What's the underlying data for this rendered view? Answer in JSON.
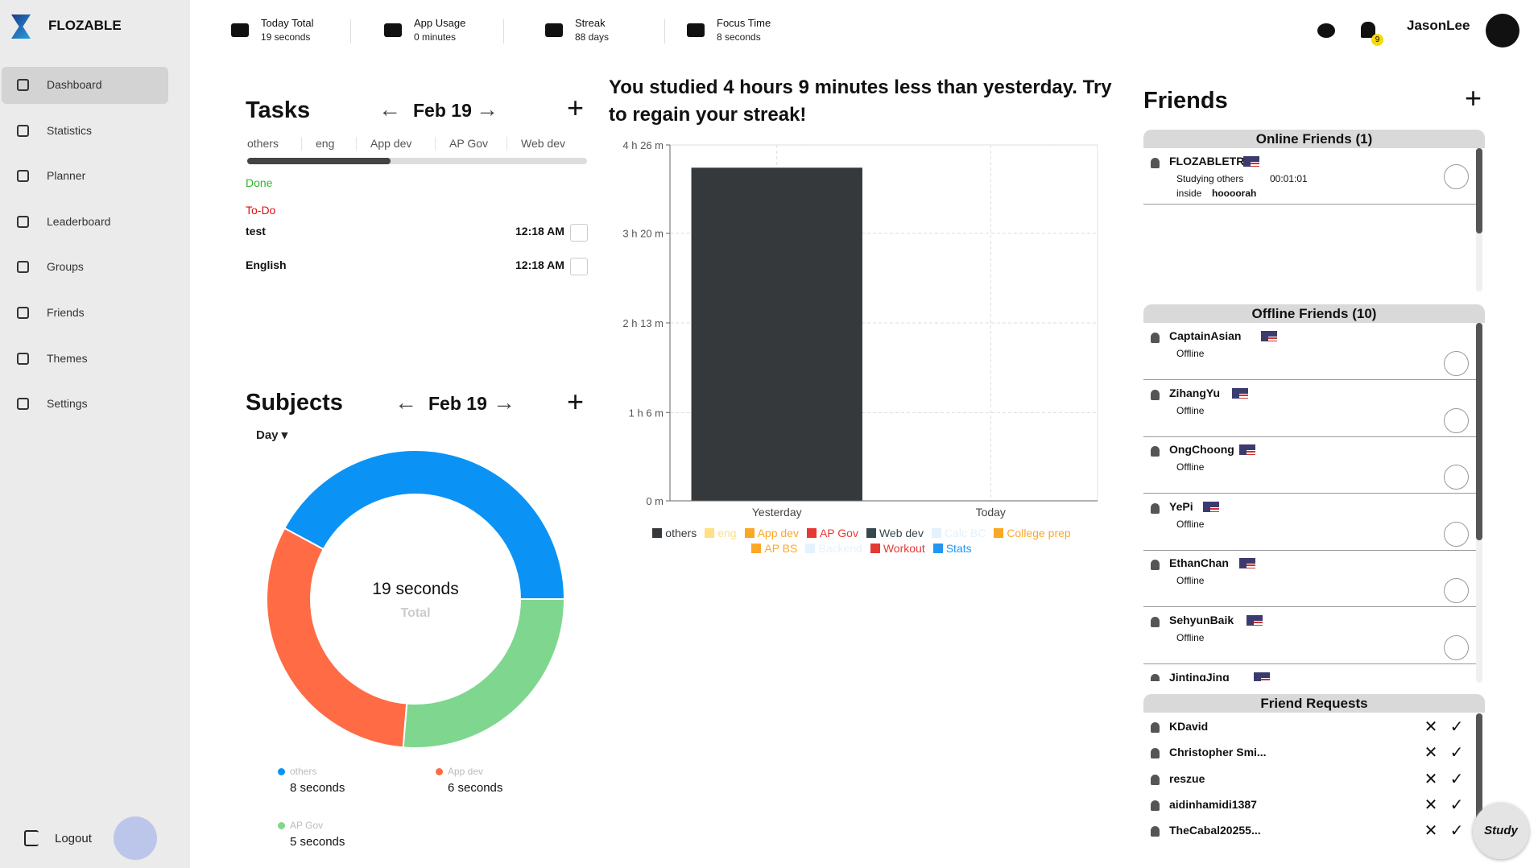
{
  "sidebar": {
    "brand": "FLOZABLE",
    "nav": [
      "Dashboard",
      "Statistics",
      "Planner",
      "Leaderboard",
      "Groups",
      "Friends",
      "Themes",
      "Settings"
    ],
    "logout": "Logout"
  },
  "header": {
    "stats": [
      {
        "label": "Today Total",
        "value": "19 seconds"
      },
      {
        "label": "App Usage",
        "value": "0 minutes"
      },
      {
        "label": "Streak",
        "value": "88 days"
      },
      {
        "label": "Focus Time",
        "value": "8 seconds"
      }
    ],
    "notifications": 9,
    "user": "JasonLee"
  },
  "tasks": {
    "title": "Tasks",
    "date": "Feb 19",
    "tabs": [
      "others",
      "eng",
      "App dev",
      "AP Gov",
      "Web dev"
    ],
    "done": "Done",
    "todo": "To-Do",
    "items": [
      {
        "name": "test",
        "time": "12:18 AM"
      },
      {
        "name": "English",
        "time": "12:18 AM"
      }
    ]
  },
  "subjects": {
    "title": "Subjects",
    "date": "Feb 19",
    "period": "Day"
  },
  "chart_data": [
    {
      "type": "pie",
      "donut": true,
      "center_text": "19 seconds",
      "center_label": "Total",
      "categories": [
        "others",
        "App dev",
        "AP Gov"
      ],
      "values": [
        8,
        6,
        5
      ],
      "value_labels": [
        "8 seconds",
        "6 seconds",
        "5 seconds"
      ],
      "colors": [
        "#0a93f5",
        "#ff6b45",
        "#7fd68f"
      ],
      "direction": "counterclockwise"
    },
    {
      "type": "bar",
      "stacked": true,
      "title": "You studied 4 hours 9 minutes less than yesterday. Try to regain your streak!",
      "categories": [
        "Yesterday",
        "Today"
      ],
      "ylim": [
        0,
        266
      ],
      "yticks": [
        {
          "value": 0,
          "label": "0 m"
        },
        {
          "value": 66,
          "label": "1 h 6 m"
        },
        {
          "value": 133,
          "label": "2 h 13 m"
        },
        {
          "value": 200,
          "label": "3 h 20 m"
        },
        {
          "value": 266,
          "label": "4 h 26 m"
        }
      ],
      "grid": true,
      "legend": "bottom",
      "series": [
        {
          "name": "others",
          "color": "#35393c",
          "values": [
            249,
            0.13
          ]
        },
        {
          "name": "eng",
          "color": "#ffe082",
          "values": [
            0,
            0
          ]
        },
        {
          "name": "App dev",
          "color": "#f9a825",
          "values": [
            0,
            0.1
          ]
        },
        {
          "name": "AP Gov",
          "color": "#e53935",
          "values": [
            0,
            0.08
          ]
        },
        {
          "name": "Web dev",
          "color": "#37474f",
          "values": [
            0,
            0
          ]
        },
        {
          "name": "Calc BC",
          "color": "#e3f2fd",
          "values": [
            0,
            0
          ]
        },
        {
          "name": "College prep",
          "color": "#f9a825",
          "values": [
            0,
            0
          ]
        },
        {
          "name": "AP BS",
          "color": "#ffa726",
          "values": [
            0,
            0
          ]
        },
        {
          "name": "Backend",
          "color": "#e3f2fd",
          "values": [
            0,
            0
          ]
        },
        {
          "name": "Workout",
          "color": "#e53935",
          "values": [
            0,
            0
          ]
        },
        {
          "name": "Stats",
          "color": "#2196f3",
          "values": [
            0,
            0
          ]
        }
      ]
    }
  ],
  "friends": {
    "title": "Friends",
    "online": {
      "header": "Online Friends (1)",
      "items": [
        {
          "name": "FLOZABLETRS",
          "status": "Studying others",
          "time": "00:01:01",
          "place": "inside",
          "room": "hoooorah"
        }
      ]
    },
    "offline": {
      "header": "Offline Friends (10)",
      "items": [
        {
          "name": "CaptainAsian",
          "status": "Offline"
        },
        {
          "name": "ZihangYu",
          "status": "Offline"
        },
        {
          "name": "OngChoong",
          "status": "Offline"
        },
        {
          "name": "YePi",
          "status": "Offline"
        },
        {
          "name": "EthanChan",
          "status": "Offline"
        },
        {
          "name": "SehyunBaik",
          "status": "Offline"
        },
        {
          "name": "JintingJing"
        }
      ]
    },
    "requests": {
      "header": "Friend Requests",
      "items": [
        "KDavid",
        "Christopher Smi...",
        "reszue",
        "aidinhamidi1387",
        "TheCabal20255..."
      ]
    }
  },
  "study": "Study"
}
